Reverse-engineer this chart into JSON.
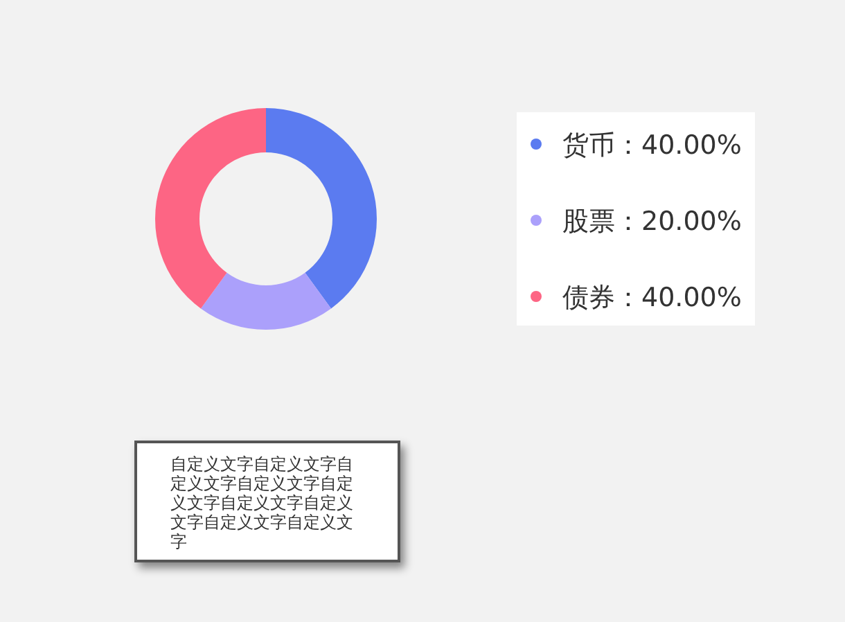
{
  "chart_data": {
    "type": "donut",
    "categories": [
      "货币",
      "股票",
      "债券"
    ],
    "values": [
      40,
      20,
      40
    ],
    "colors": [
      "#5b7bf0",
      "#aba0fb",
      "#fd6584"
    ],
    "value_labels": [
      "40.00%",
      "20.00%",
      "40.00%"
    ],
    "legend": "right",
    "annotations": [
      "自定义文字自定义文字自定义文字自定义文字自定义文字自定义文字自定义文字自定义文字自定义文字"
    ]
  }
}
